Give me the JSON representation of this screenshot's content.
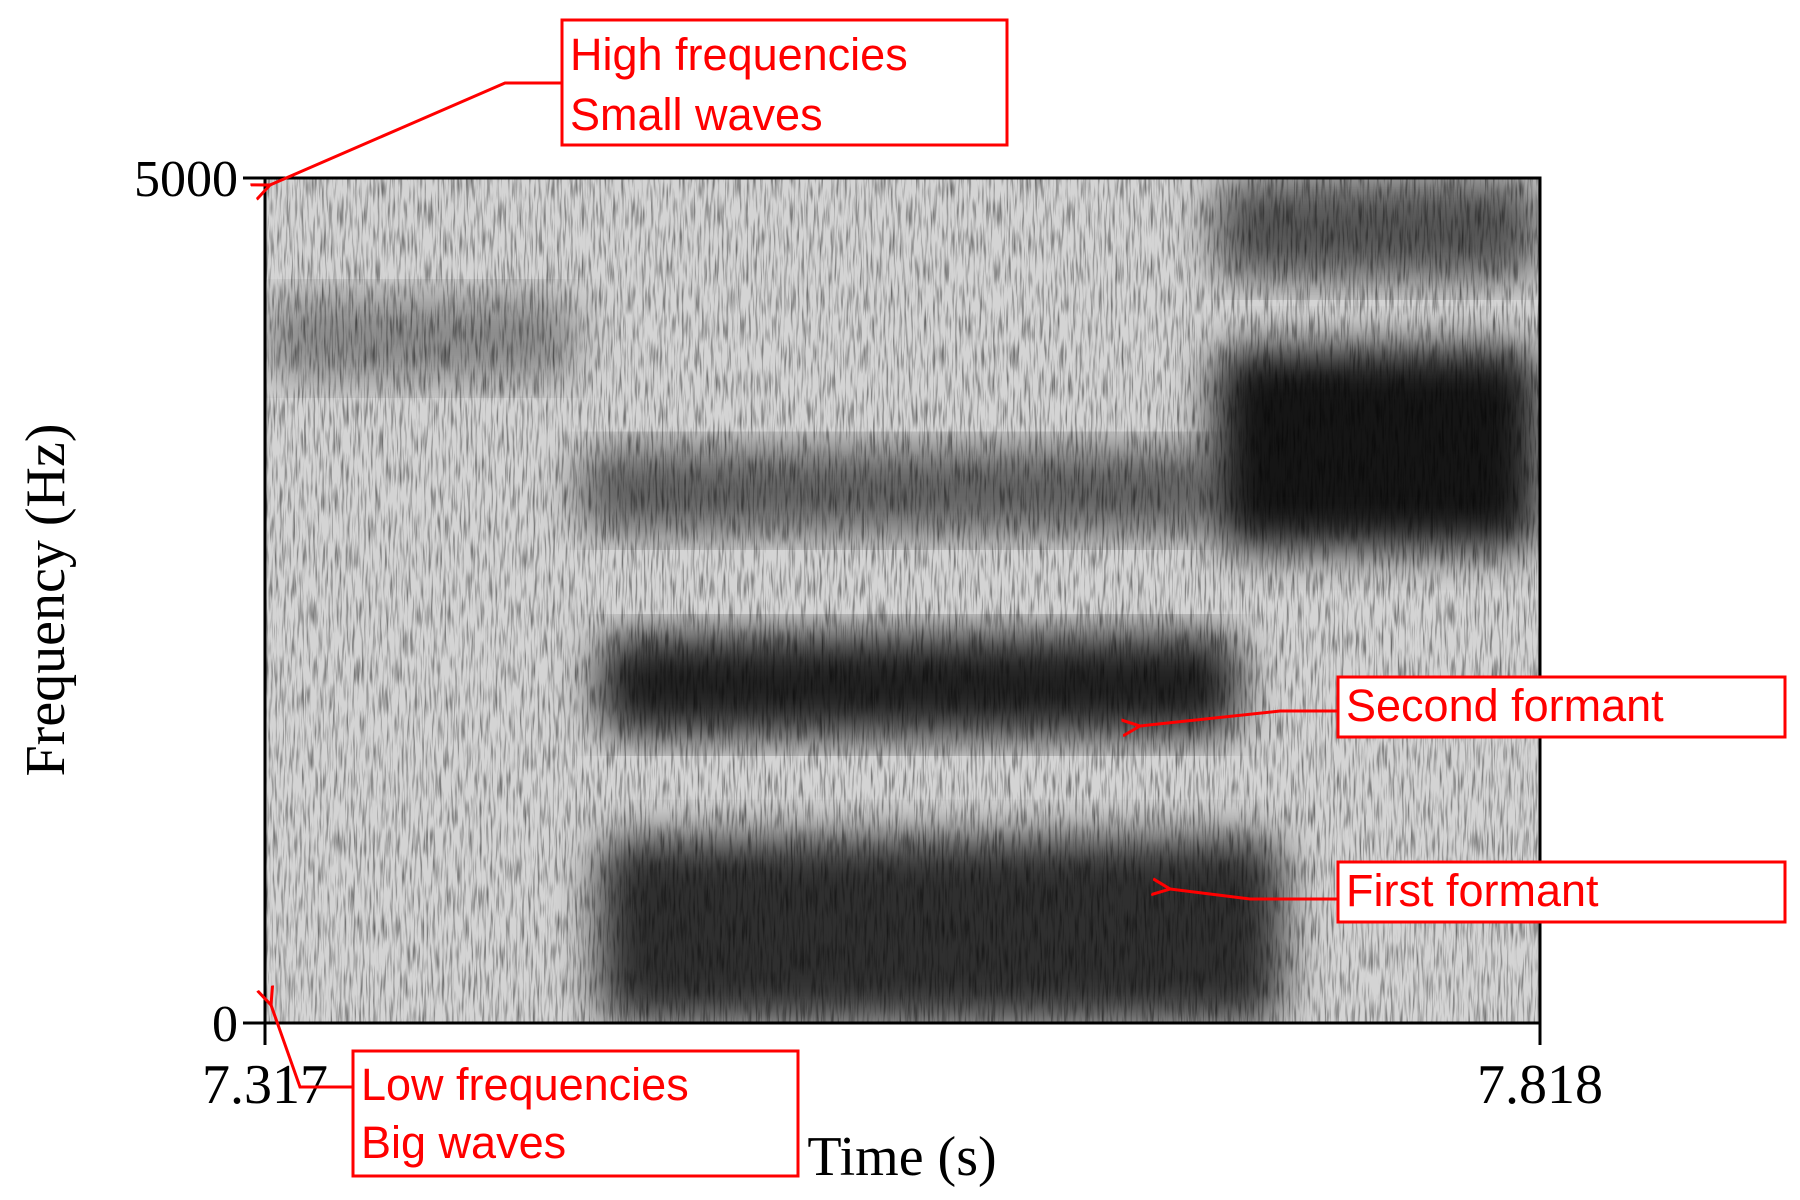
{
  "chart_data": {
    "type": "heatmap",
    "subtype": "spectrogram (grayscale)",
    "xlabel": "Time (s)",
    "ylabel": "Frequency (Hz)",
    "xlim": [
      7.317,
      7.818
    ],
    "ylim": [
      0,
      5000
    ],
    "x_tick_labels": [
      "7.317",
      "7.818"
    ],
    "y_tick_labels": [
      "0",
      "5000"
    ],
    "grid": false,
    "legend": "none",
    "colormap": {
      "low": "#ffffff",
      "high": "#000000"
    },
    "energy_regions": [
      {
        "t_start": 7.448,
        "t_end": 7.717,
        "f_low": 0,
        "f_high": 1100,
        "intensity": 0.78
      },
      {
        "t_start": 7.448,
        "t_end": 7.7,
        "f_low": 1700,
        "f_high": 2300,
        "intensity": 0.85
      },
      {
        "t_start": 7.44,
        "t_end": 7.69,
        "f_low": 2900,
        "f_high": 3400,
        "intensity": 0.55
      },
      {
        "t_start": 7.69,
        "t_end": 7.818,
        "f_low": 2800,
        "f_high": 4000,
        "intensity": 0.9
      },
      {
        "t_start": 7.69,
        "t_end": 7.818,
        "f_low": 4400,
        "f_high": 5000,
        "intensity": 0.6
      },
      {
        "t_start": 7.317,
        "t_end": 7.44,
        "f_low": 3800,
        "f_high": 4300,
        "intensity": 0.35
      }
    ],
    "annotations": [
      {
        "lines": [
          "High frequencies",
          "Small waves"
        ],
        "points_to": {
          "t": 7.317,
          "f": 5000
        }
      },
      {
        "lines": [
          "Low frequencies",
          "Big waves"
        ],
        "points_to": {
          "t": 7.317,
          "f": 0
        }
      },
      {
        "lines": [
          "Second formant"
        ],
        "points_to": {
          "t": 7.659,
          "f": 1750
        }
      },
      {
        "lines": [
          "First formant"
        ],
        "points_to": {
          "t": 7.67,
          "f": 800
        }
      }
    ],
    "annotation_color": "#ff0000"
  }
}
